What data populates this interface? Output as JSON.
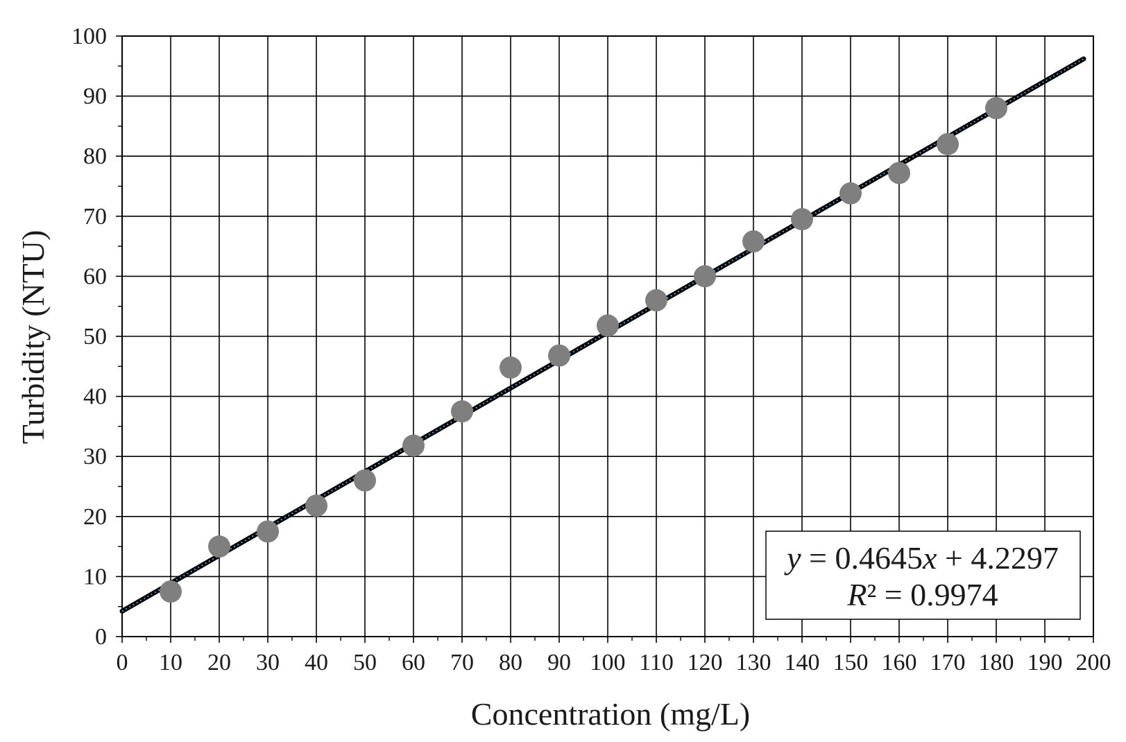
{
  "chart_data": {
    "type": "scatter",
    "title": "",
    "xlabel": "Concentration (mg/L)",
    "ylabel": "Turbidity (NTU)",
    "xlim": [
      0,
      200
    ],
    "ylim": [
      0,
      100
    ],
    "x_ticks": [
      0,
      10,
      20,
      30,
      40,
      50,
      60,
      70,
      80,
      90,
      100,
      110,
      120,
      130,
      140,
      150,
      160,
      170,
      180,
      190,
      200
    ],
    "y_ticks": [
      0,
      10,
      20,
      30,
      40,
      50,
      60,
      70,
      80,
      90,
      100
    ],
    "grid": true,
    "series": [
      {
        "x": [
          10,
          20,
          30,
          40,
          50,
          60,
          70,
          80,
          90,
          100,
          110,
          120,
          130,
          140,
          150,
          160,
          170,
          180
        ],
        "y": [
          7.5,
          15,
          17.5,
          21.8,
          26,
          31.8,
          37.5,
          44.8,
          46.8,
          51.8,
          56,
          60,
          65.8,
          69.5,
          73.8,
          77.2,
          82,
          88
        ],
        "color": "#7f7f7f"
      }
    ],
    "trendline": {
      "slope": 0.4645,
      "intercept": 4.2297,
      "x_range": [
        0,
        198
      ],
      "color": "#000000",
      "inner_color": "#5fa8d8"
    },
    "annotation": {
      "equation_prefix": "y",
      "equation_middle": " = 0.4645",
      "equation_var": "x",
      "equation_suffix": " + 4.2297",
      "r2_prefix": "R",
      "r2_suffix": "² = 0.9974",
      "placement": "bottom-right"
    }
  }
}
